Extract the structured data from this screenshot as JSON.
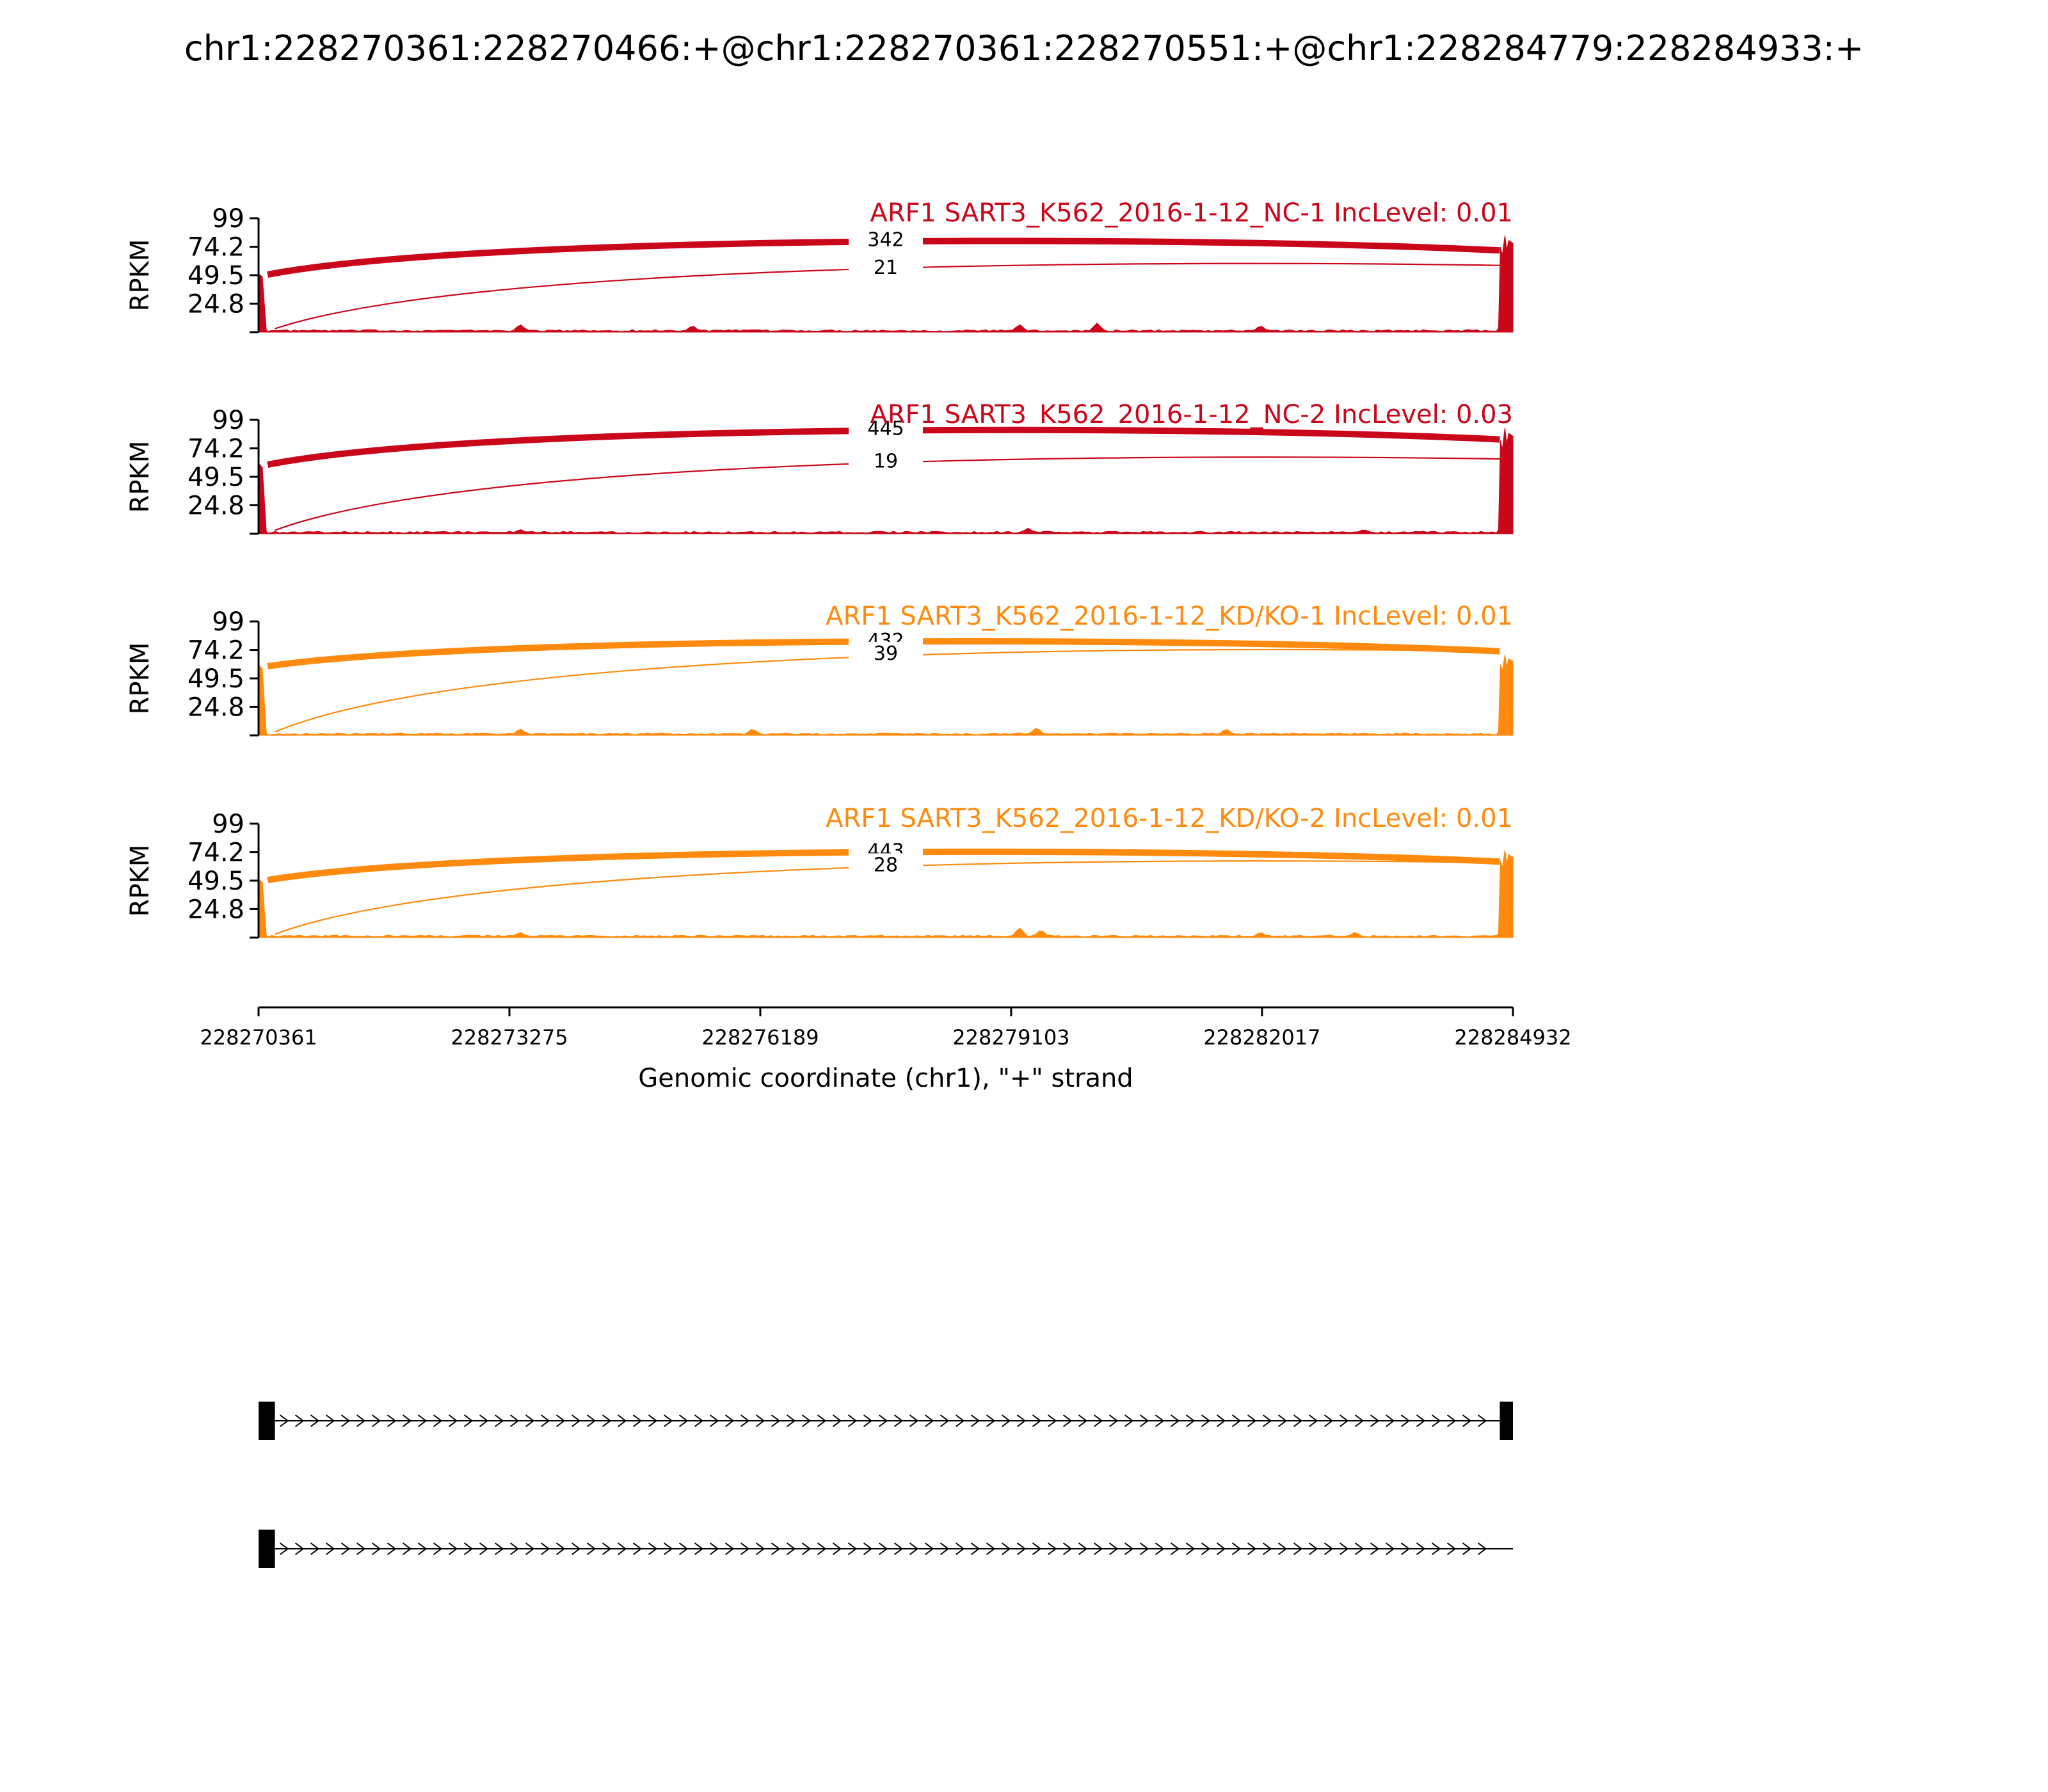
{
  "title": "chr1:228270361:228270466:+@chr1:228270361:228270551:+@chr1:228284779:228284933:+",
  "chart_data": {
    "type": "area",
    "title": "chr1:228270361:228270466:+@chr1:228270361:228270551:+@chr1:228284779:228284933:+",
    "ylabel": "RPKM",
    "ylim": [
      0,
      99
    ],
    "yticks": [
      "24.8",
      "49.5",
      "74.2",
      "99"
    ],
    "xlabel": "Genomic coordinate (chr1), \"+\" strand",
    "xlim": [
      228270361,
      228284932
    ],
    "xticks": [
      "228270361",
      "228273275",
      "228276189",
      "228279103",
      "228282017",
      "228284932"
    ],
    "grid": false,
    "colors": {
      "NC": "#c9061a",
      "KD": "#ff8a0d"
    },
    "tracks": [
      {
        "label": "ARF1 SART3_K562_2016-1-12_NC-1 IncLevel: 0.01",
        "color": "#c9061a",
        "junctions": [
          {
            "from": 228270466,
            "to": 228284779,
            "count": "342",
            "height": 81
          },
          {
            "from": 228270551,
            "to": 228284779,
            "count": "21",
            "height": 59
          }
        ],
        "exon_peaks": [
          {
            "start": 228270361,
            "end": 228270466,
            "rpkm": 50
          },
          {
            "start": 228284779,
            "end": 228284932,
            "rpkm": 84
          }
        ],
        "intron_peaks": [
          {
            "x": 228273400,
            "rpkm": 7
          },
          {
            "x": 228275400,
            "rpkm": 6
          },
          {
            "x": 228279200,
            "rpkm": 7
          },
          {
            "x": 228280100,
            "rpkm": 8
          },
          {
            "x": 228282000,
            "rpkm": 6
          }
        ]
      },
      {
        "label": "ARF1 SART3_K562_2016-1-12_NC-2 IncLevel: 0.03",
        "color": "#c9061a",
        "junctions": [
          {
            "from": 228270466,
            "to": 228284779,
            "count": "445",
            "height": 92
          },
          {
            "from": 228270551,
            "to": 228284779,
            "count": "19",
            "height": 66
          }
        ],
        "exon_peaks": [
          {
            "start": 228270361,
            "end": 228270466,
            "rpkm": 60
          },
          {
            "start": 228284779,
            "end": 228284932,
            "rpkm": 92
          }
        ],
        "intron_peaks": [
          {
            "x": 228273400,
            "rpkm": 4
          },
          {
            "x": 228279300,
            "rpkm": 5
          },
          {
            "x": 228283200,
            "rpkm": 4
          }
        ]
      },
      {
        "label": "ARF1 SART3_K562_2016-1-12_KD/KO-1 IncLevel: 0.01",
        "color": "#ff8a0d",
        "junctions": [
          {
            "from": 228270466,
            "to": 228284779,
            "count": "432",
            "height": 83
          },
          {
            "from": 228270551,
            "to": 228284779,
            "count": "39",
            "height": 74
          }
        ],
        "exon_peaks": [
          {
            "start": 228270361,
            "end": 228270466,
            "rpkm": 60
          },
          {
            "start": 228284779,
            "end": 228284932,
            "rpkm": 70
          }
        ],
        "intron_peaks": [
          {
            "x": 228273400,
            "rpkm": 6
          },
          {
            "x": 228276100,
            "rpkm": 6
          },
          {
            "x": 228279400,
            "rpkm": 7
          },
          {
            "x": 228281600,
            "rpkm": 6
          }
        ]
      },
      {
        "label": "ARF1 SART3_K562_2016-1-12_KD/KO-2 IncLevel: 0.01",
        "color": "#ff8a0d",
        "junctions": [
          {
            "from": 228270466,
            "to": 228284779,
            "count": "443",
            "height": 76
          },
          {
            "from": 228270551,
            "to": 228284779,
            "count": "28",
            "height": 66
          }
        ],
        "exon_peaks": [
          {
            "start": 228270361,
            "end": 228270466,
            "rpkm": 50
          },
          {
            "start": 228284779,
            "end": 228284932,
            "rpkm": 76
          }
        ],
        "intron_peaks": [
          {
            "x": 228273400,
            "rpkm": 5
          },
          {
            "x": 228279200,
            "rpkm": 9
          },
          {
            "x": 228279450,
            "rpkm": 7
          },
          {
            "x": 228282000,
            "rpkm": 5
          },
          {
            "x": 228283100,
            "rpkm": 5
          }
        ]
      }
    ],
    "isoforms": [
      {
        "exons": [
          [
            228270361,
            228270551
          ],
          [
            228284779,
            228284932
          ]
        ]
      },
      {
        "exons": [
          [
            228270361,
            228270551
          ]
        ],
        "line_end": 228284932
      }
    ]
  }
}
